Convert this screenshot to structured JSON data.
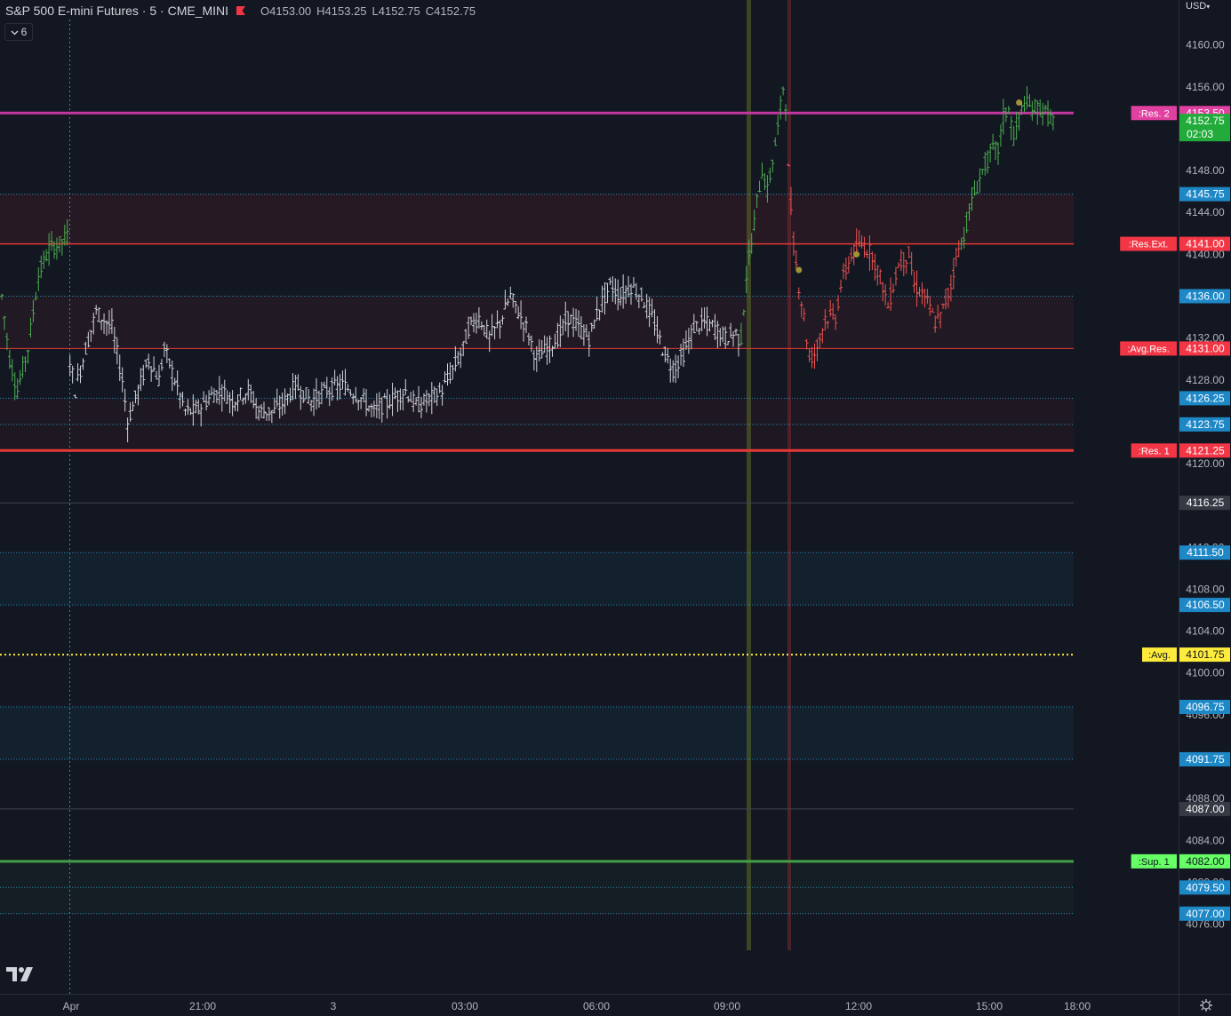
{
  "header": {
    "title": "S&P 500 E-mini Futures · 5 · CME_MINI",
    "open": "O4153.00",
    "high": "H4153.25",
    "low": "L4152.75",
    "close": "C4152.75",
    "indicator_count": "6",
    "currency": "USD"
  },
  "colors": {
    "background": "#131722",
    "up": "#4caf50",
    "down": "#ef5350",
    "neutral": "#d1d4dc",
    "resistance": "#e53935",
    "res2": "#c2379f",
    "support": "#43a047",
    "avg": "#ffeb3b",
    "level_blue": "#29b6f6"
  },
  "chart_data": {
    "type": "ohlc-bar",
    "symbol": "ES",
    "interval": "5",
    "y_axis_ticks": [
      "4160.00",
      "4156.00",
      "4148.00",
      "4144.00",
      "4140.00",
      "4136.00",
      "4132.00",
      "4128.00",
      "4120.00",
      "4116.00",
      "4112.00",
      "4108.00",
      "4104.00",
      "4100.00",
      "4096.00",
      "4088.00",
      "4084.00",
      "4080.00",
      "4076.00"
    ],
    "x_axis_ticks": [
      "Apr",
      "21:00",
      "3",
      "03:00",
      "06:00",
      "09:00",
      "12:00",
      "15:00",
      "18:00"
    ],
    "ylim": [
      4073.5,
      4164.3
    ],
    "levels": [
      {
        "label": ":Res. 2",
        "value": "4153.50",
        "color": "#c2379f",
        "style": "solid-thick"
      },
      {
        "label": ":Res.Ext.",
        "value": "4141.00",
        "color": "#e53935",
        "style": "solid"
      },
      {
        "label": ":Avg.Res.",
        "value": "4131.00",
        "color": "#e53935",
        "style": "solid-thin"
      },
      {
        "label": ":Res. 1",
        "value": "4121.25",
        "color": "#e53935",
        "style": "solid-thick"
      },
      {
        "label": ":Avg.",
        "value": "4101.75",
        "color": "#ffeb3b",
        "style": "dotted"
      },
      {
        "label": ":Sup. 1",
        "value": "4082.00",
        "color": "#43a047",
        "style": "solid-thick"
      }
    ],
    "zone_levels": [
      "4145.75",
      "4136.00",
      "4126.25",
      "4123.75",
      "4111.50",
      "4106.50",
      "4096.75",
      "4091.75",
      "4079.50",
      "4077.00"
    ],
    "gray_levels": [
      "4116.25",
      "4087.00"
    ],
    "last_price": {
      "value": "4152.75",
      "countdown": "02:03"
    },
    "segments": [
      {
        "name": "pre",
        "color": "up",
        "points": [
          [
            0,
            4136
          ],
          [
            3,
            4130
          ],
          [
            6,
            4127
          ],
          [
            10,
            4131
          ],
          [
            14,
            4138
          ],
          [
            18,
            4140.5
          ],
          [
            22,
            4141
          ],
          [
            26,
            4142
          ]
        ]
      },
      {
        "name": "overnight",
        "color": "neutral",
        "points": [
          [
            26,
            4130
          ],
          [
            28,
            4127
          ],
          [
            32,
            4131
          ],
          [
            36,
            4134.5
          ],
          [
            38,
            4134
          ],
          [
            42,
            4133
          ],
          [
            46,
            4128
          ],
          [
            48,
            4124
          ],
          [
            52,
            4127
          ],
          [
            56,
            4130
          ],
          [
            60,
            4128
          ],
          [
            62,
            4131
          ],
          [
            66,
            4128
          ],
          [
            70,
            4125
          ],
          [
            74,
            4125
          ],
          [
            80,
            4126.5
          ],
          [
            84,
            4127
          ],
          [
            88,
            4126
          ],
          [
            94,
            4127
          ],
          [
            98,
            4125
          ],
          [
            104,
            4125
          ],
          [
            108,
            4126
          ],
          [
            112,
            4127.5
          ],
          [
            118,
            4126
          ],
          [
            124,
            4127
          ],
          [
            130,
            4127.5
          ],
          [
            136,
            4126.5
          ],
          [
            142,
            4125
          ],
          [
            148,
            4126
          ],
          [
            154,
            4127
          ],
          [
            158,
            4125.5
          ],
          [
            162,
            4126
          ],
          [
            168,
            4127
          ],
          [
            172,
            4129
          ],
          [
            176,
            4131
          ],
          [
            178,
            4133
          ],
          [
            182,
            4134
          ],
          [
            186,
            4132
          ],
          [
            190,
            4133.5
          ],
          [
            194,
            4136
          ],
          [
            196,
            4135
          ],
          [
            200,
            4133
          ],
          [
            204,
            4130
          ],
          [
            208,
            4131
          ],
          [
            212,
            4132
          ],
          [
            216,
            4134
          ],
          [
            220,
            4133
          ],
          [
            224,
            4132
          ],
          [
            228,
            4135
          ],
          [
            232,
            4137
          ],
          [
            236,
            4136
          ],
          [
            240,
            4137
          ],
          [
            244,
            4136
          ],
          [
            248,
            4134
          ],
          [
            252,
            4131
          ],
          [
            256,
            4129
          ],
          [
            260,
            4130.5
          ],
          [
            264,
            4133
          ],
          [
            268,
            4133.5
          ],
          [
            272,
            4133
          ],
          [
            276,
            4132
          ],
          [
            280,
            4132.5
          ],
          [
            282,
            4131.5
          ]
        ]
      },
      {
        "name": "rally",
        "color": "up",
        "points": [
          [
            282,
            4132
          ],
          [
            284,
            4138
          ],
          [
            286,
            4141
          ],
          [
            288,
            4145
          ],
          [
            290,
            4148
          ],
          [
            292,
            4146
          ],
          [
            294,
            4149
          ],
          [
            296,
            4152
          ],
          [
            298,
            4156
          ],
          [
            300,
            4153
          ]
        ]
      },
      {
        "name": "selloff",
        "color": "down",
        "points": [
          [
            300,
            4148
          ],
          [
            302,
            4141
          ],
          [
            304,
            4137
          ],
          [
            306,
            4134
          ],
          [
            308,
            4130
          ],
          [
            310,
            4130.5
          ],
          [
            312,
            4132
          ],
          [
            314,
            4134
          ],
          [
            318,
            4134
          ],
          [
            320,
            4137
          ],
          [
            324,
            4140
          ],
          [
            328,
            4141
          ],
          [
            332,
            4140
          ],
          [
            336,
            4137
          ],
          [
            338,
            4135
          ],
          [
            342,
            4139
          ],
          [
            346,
            4140
          ],
          [
            348,
            4137
          ],
          [
            352,
            4136
          ],
          [
            356,
            4133.5
          ],
          [
            358,
            4134
          ],
          [
            362,
            4137
          ],
          [
            364,
            4140
          ],
          [
            366,
            4141
          ]
        ]
      },
      {
        "name": "afternoon",
        "color": "up",
        "points": [
          [
            366,
            4141
          ],
          [
            370,
            4145
          ],
          [
            374,
            4148
          ],
          [
            378,
            4150
          ],
          [
            380,
            4150
          ],
          [
            382,
            4153
          ],
          [
            384,
            4154
          ],
          [
            386,
            4151
          ],
          [
            388,
            4153
          ],
          [
            390,
            4154.5
          ],
          [
            392,
            4154
          ],
          [
            396,
            4154
          ],
          [
            398,
            4153.5
          ],
          [
            400,
            4153
          ],
          [
            402,
            4152.75
          ]
        ]
      }
    ]
  }
}
